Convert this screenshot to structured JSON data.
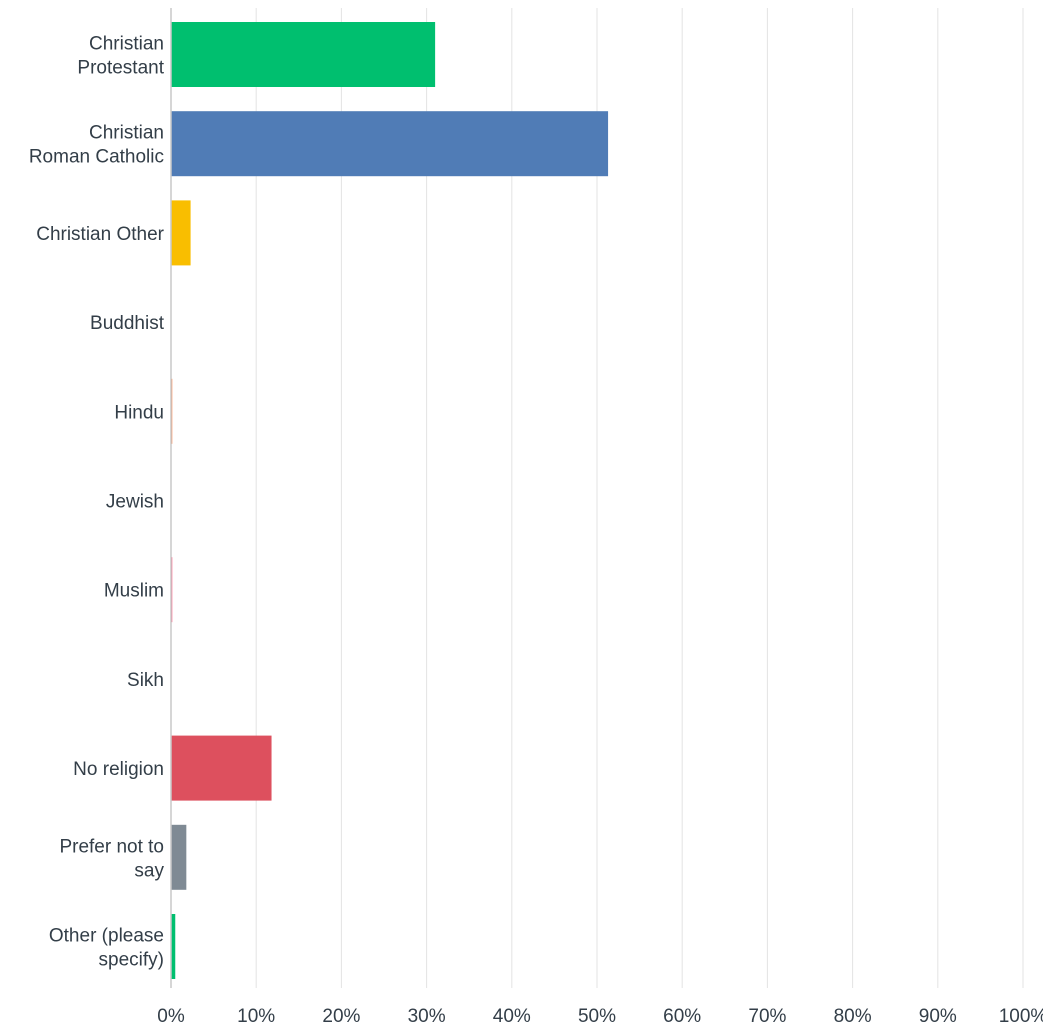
{
  "chart_data": {
    "type": "bar",
    "orientation": "horizontal",
    "categories": [
      [
        "Christian",
        "Protestant"
      ],
      [
        "Christian",
        "Roman Catholic"
      ],
      [
        "Christian Other"
      ],
      [
        "Buddhist"
      ],
      [
        "Hindu"
      ],
      [
        "Jewish"
      ],
      [
        "Muslim"
      ],
      [
        "Sikh"
      ],
      [
        "No religion"
      ],
      [
        "Prefer not to",
        "say"
      ],
      [
        "Other (please",
        "specify)"
      ]
    ],
    "values": [
      31,
      51.3,
      2.3,
      0,
      0.15,
      0,
      0.15,
      0,
      11.8,
      1.8,
      0.5
    ],
    "colors": [
      "#00bf6f",
      "#507cb6",
      "#f9be00",
      "#6bc8cd",
      "#ff8b4f",
      "#7f7fff",
      "#ff5d84",
      "#ad9b75",
      "#dd505e",
      "#7f8a94",
      "#00bf6f"
    ],
    "xlim": [
      0,
      100
    ],
    "xticks": [
      "0%",
      "10%",
      "20%",
      "30%",
      "40%",
      "50%",
      "60%",
      "70%",
      "80%",
      "90%",
      "100%"
    ],
    "xlabel": "",
    "ylabel": "",
    "title": "",
    "grid": true
  }
}
